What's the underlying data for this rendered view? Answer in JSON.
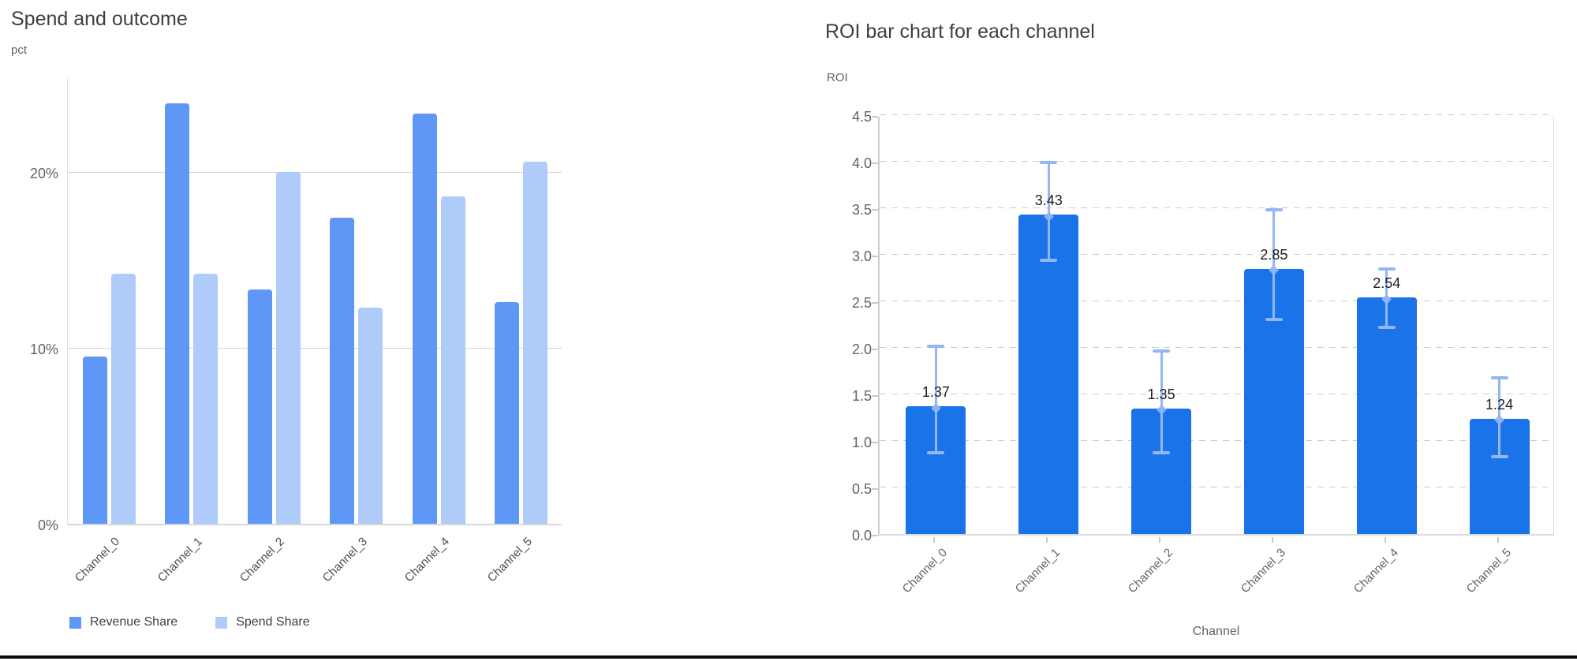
{
  "page": {
    "background": "#ffffff",
    "bottom_rule_color": "#0b0b0d"
  },
  "chart_data": [
    {
      "type": "bar",
      "subtype": "grouped",
      "title": "Spend and outcome",
      "y_unit_label": "pct",
      "categories": [
        "Channel_0",
        "Channel_1",
        "Channel_2",
        "Channel_3",
        "Channel_4",
        "Channel_5"
      ],
      "series": [
        {
          "name": "Revenue Share",
          "color": "#5e97f6",
          "values": [
            9.5,
            23.9,
            13.3,
            17.4,
            23.3,
            12.6
          ]
        },
        {
          "name": "Spend Share",
          "color": "#aecbfa",
          "values": [
            14.2,
            14.2,
            20.0,
            12.3,
            18.6,
            20.6
          ]
        }
      ],
      "y_ticks": [
        {
          "label": "0%",
          "value": 0
        },
        {
          "label": "10%",
          "value": 10
        },
        {
          "label": "20%",
          "value": 20
        }
      ],
      "ylim": [
        0,
        25.5
      ],
      "grid": "horizontal-solid",
      "legend_position": "bottom-left"
    },
    {
      "type": "bar",
      "title": "ROI bar chart for each channel",
      "y_axis_label": "ROI",
      "x_axis_label": "Channel",
      "categories": [
        "Channel_0",
        "Channel_1",
        "Channel_2",
        "Channel_3",
        "Channel_4",
        "Channel_5"
      ],
      "values": [
        1.37,
        3.43,
        1.35,
        2.85,
        2.54,
        1.24
      ],
      "bar_labels": [
        "1.37",
        "3.43",
        "1.35",
        "2.85",
        "2.54",
        "1.24"
      ],
      "error_low": [
        0.88,
        2.95,
        0.88,
        2.31,
        2.23,
        0.84
      ],
      "error_high": [
        2.04,
        4.02,
        1.99,
        3.51,
        2.87,
        1.7
      ],
      "y_ticks": [
        "0.0",
        "0.5",
        "1.0",
        "1.5",
        "2.0",
        "2.5",
        "3.0",
        "3.5",
        "4.0",
        "4.5"
      ],
      "ylim": [
        0,
        4.5
      ],
      "bar_color": "#1a73e8",
      "error_bar_color": "#93b7f5",
      "grid": "horizontal-dashed",
      "legend_position": "none"
    }
  ]
}
